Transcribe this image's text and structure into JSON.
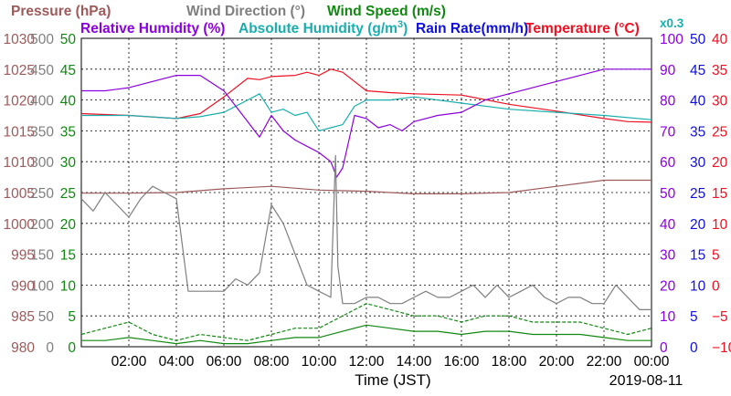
{
  "chart_data": {
    "type": "line",
    "legend_row1": [
      {
        "text": "Pressure (hPa)",
        "color": "#9e5a5a"
      },
      {
        "text": "Wind Direction (°)",
        "color": "#7f7f7f"
      },
      {
        "text": "Wind Speed (m/s)",
        "color": "#118811"
      }
    ],
    "legend_row2": [
      {
        "text": "Relative Humidity (%)",
        "color": "#8b00e0"
      },
      {
        "text": "Absolute Humidity (g/m",
        "sup": "3",
        "tail": ")",
        "color": "#1aaeae"
      },
      {
        "text": "Rain Rate(mm/h)",
        "color": "#1010dd"
      },
      {
        "text": "Temperature (°C)",
        "color": "#ee1122"
      }
    ],
    "absolute_humidity_scale_note": "x0.3",
    "xlabel": "Time (JST)",
    "date_label": "2019-08-11",
    "x_ticks": [
      "02:00",
      "04:00",
      "06:00",
      "08:00",
      "10:00",
      "12:00",
      "14:00",
      "16:00",
      "18:00",
      "20:00",
      "22:00",
      "00:00"
    ],
    "x_range_hours": [
      0,
      24
    ],
    "grid": true,
    "axes_left": [
      {
        "name": "pressure",
        "color": "#9e5a5a",
        "ticks": [
          "1030",
          "1025",
          "1020",
          "1015",
          "1010",
          "1005",
          "1000",
          "995",
          "990",
          "985",
          "980"
        ]
      },
      {
        "name": "wind_direction",
        "color": "#7f7f7f",
        "ticks": [
          "500",
          "450",
          "400",
          "350",
          "300",
          "250",
          "200",
          "150",
          "100",
          "50",
          "0"
        ]
      },
      {
        "name": "wind_speed",
        "color": "#118811",
        "ticks": [
          "50",
          "45",
          "40",
          "35",
          "30",
          "25",
          "20",
          "15",
          "10",
          "5",
          "0"
        ]
      }
    ],
    "axes_right": [
      {
        "name": "relative_humidity",
        "color": "#8b00e0",
        "ticks": [
          "100",
          "90",
          "80",
          "70",
          "60",
          "50",
          "40",
          "30",
          "20",
          "10",
          "0"
        ]
      },
      {
        "name": "rain_rate",
        "color": "#1010dd",
        "ticks": [
          "50",
          "45",
          "40",
          "35",
          "30",
          "25",
          "20",
          "15",
          "10",
          "5",
          "0"
        ]
      },
      {
        "name": "temperature",
        "color": "#ee1122",
        "ticks": [
          "40",
          "35",
          "30",
          "25",
          "20",
          "15",
          "10",
          "5",
          "0",
          "−5",
          "−10"
        ]
      }
    ],
    "ylim": {
      "pressure": [
        980,
        1030
      ],
      "wind_direction": [
        0,
        500
      ],
      "wind_speed": [
        0,
        50
      ],
      "relative_humidity": [
        0,
        100
      ],
      "rain_rate": [
        0,
        50
      ],
      "temperature": [
        -10,
        40
      ],
      "absolute_humidity_scaled": [
        0,
        50
      ]
    },
    "series": [
      {
        "name": "Temperature",
        "axis": "temperature",
        "color": "#ee1122",
        "dashed": false,
        "x": [
          0,
          2,
          4,
          5,
          6,
          7,
          7.5,
          8,
          9,
          9.5,
          10,
          10.5,
          11,
          11.5,
          12,
          13,
          14,
          16,
          18,
          20,
          22,
          23,
          24
        ],
        "y": [
          27.8,
          27.5,
          27,
          27.8,
          30.5,
          33.5,
          33.3,
          33.8,
          34,
          34.5,
          34,
          35,
          34.5,
          33,
          31.5,
          31.2,
          31,
          30.8,
          29.3,
          28.2,
          27,
          26.5,
          26.4
        ]
      },
      {
        "name": "Absolute Humidity (x0.3)",
        "axis": "absolute_humidity_scaled",
        "color": "#1aaeae",
        "dashed": false,
        "x": [
          0,
          2,
          4,
          5,
          6,
          7,
          7.5,
          8,
          8.5,
          9,
          9.5,
          10,
          10.5,
          11,
          11.5,
          12,
          13,
          14,
          16,
          18,
          20,
          22,
          24
        ],
        "y": [
          37.5,
          37.5,
          37,
          37.3,
          38,
          40,
          41,
          38,
          38.5,
          37.5,
          38,
          35,
          35.5,
          36,
          39,
          40,
          40,
          40.5,
          39.5,
          38.5,
          38,
          37.5,
          36.8
        ]
      },
      {
        "name": "Relative Humidity",
        "axis": "relative_humidity",
        "color": "#8b00e0",
        "dashed": false,
        "x": [
          0,
          1,
          2,
          3,
          4,
          5,
          6,
          6.5,
          7,
          7.5,
          8,
          8.5,
          9,
          9.5,
          10,
          10.5,
          10.75,
          11,
          11.5,
          12,
          12.5,
          13,
          13.5,
          14,
          15,
          16,
          17,
          18,
          19,
          20,
          21,
          22,
          23,
          24
        ],
        "y": [
          83,
          83,
          84,
          86,
          88,
          88,
          83,
          78,
          73,
          68,
          75,
          70,
          67,
          65,
          63,
          60,
          55,
          58,
          75,
          74,
          71,
          72,
          70,
          73,
          75,
          76,
          80,
          82,
          84,
          86,
          88,
          90,
          90,
          90
        ]
      },
      {
        "name": "Pressure",
        "axis": "pressure",
        "color": "#9e5a5a",
        "dashed": false,
        "x": [
          0,
          2,
          4,
          6,
          8,
          10,
          12,
          14,
          16,
          18,
          20,
          22,
          24
        ],
        "y": [
          1004.9,
          1004.9,
          1005,
          1005.6,
          1006,
          1005.4,
          1005.2,
          1004.8,
          1004.8,
          1005,
          1006,
          1007,
          1007
        ]
      },
      {
        "name": "Wind Direction",
        "axis": "wind_direction",
        "color": "#7f7f7f",
        "dashed": false,
        "x": [
          0,
          0.5,
          1,
          1.5,
          2,
          2.5,
          3,
          3.5,
          4,
          4.5,
          5,
          5.5,
          6,
          6.5,
          7,
          7.5,
          8,
          8.5,
          9,
          9.5,
          10,
          10.5,
          10.7,
          10.8,
          11,
          11.5,
          12,
          12.5,
          13,
          13.5,
          14,
          14.5,
          15,
          15.5,
          16,
          16.5,
          17,
          17.5,
          18,
          18.5,
          19,
          19.5,
          20,
          20.5,
          21,
          21.5,
          22,
          22.5,
          23,
          23.5,
          24
        ],
        "y": [
          240,
          220,
          250,
          230,
          210,
          240,
          260,
          250,
          240,
          90,
          90,
          90,
          90,
          110,
          100,
          120,
          230,
          200,
          150,
          100,
          90,
          80,
          310,
          130,
          70,
          70,
          80,
          80,
          70,
          70,
          80,
          90,
          80,
          80,
          90,
          100,
          80,
          100,
          80,
          90,
          100,
          80,
          70,
          80,
          80,
          70,
          70,
          100,
          80,
          60,
          60
        ]
      },
      {
        "name": "Wind Speed (max)",
        "axis": "wind_speed",
        "color": "#118811",
        "dashed": true,
        "x": [
          0,
          1,
          2,
          3,
          4,
          5,
          6,
          7,
          8,
          9,
          10,
          11,
          12,
          13,
          14,
          15,
          16,
          17,
          18,
          19,
          20,
          21,
          22,
          23,
          24
        ],
        "y": [
          2,
          3,
          4,
          2,
          1,
          2,
          1.5,
          1,
          2,
          3,
          3,
          5,
          7,
          6,
          5,
          5,
          4,
          5,
          5,
          4,
          4,
          4,
          3,
          2,
          3
        ]
      },
      {
        "name": "Wind Speed (mean)",
        "axis": "wind_speed",
        "color": "#118811",
        "dashed": false,
        "x": [
          0,
          1,
          2,
          3,
          4,
          5,
          6,
          7,
          8,
          9,
          10,
          11,
          12,
          13,
          14,
          15,
          16,
          17,
          18,
          19,
          20,
          21,
          22,
          23,
          24
        ],
        "y": [
          1,
          1,
          1.5,
          1,
          0.5,
          1,
          0.5,
          0.5,
          1,
          1.5,
          1.5,
          2.5,
          3.5,
          3,
          2.5,
          2.5,
          2,
          2.5,
          2.5,
          2,
          2,
          2,
          1.5,
          1,
          1
        ]
      }
    ]
  }
}
